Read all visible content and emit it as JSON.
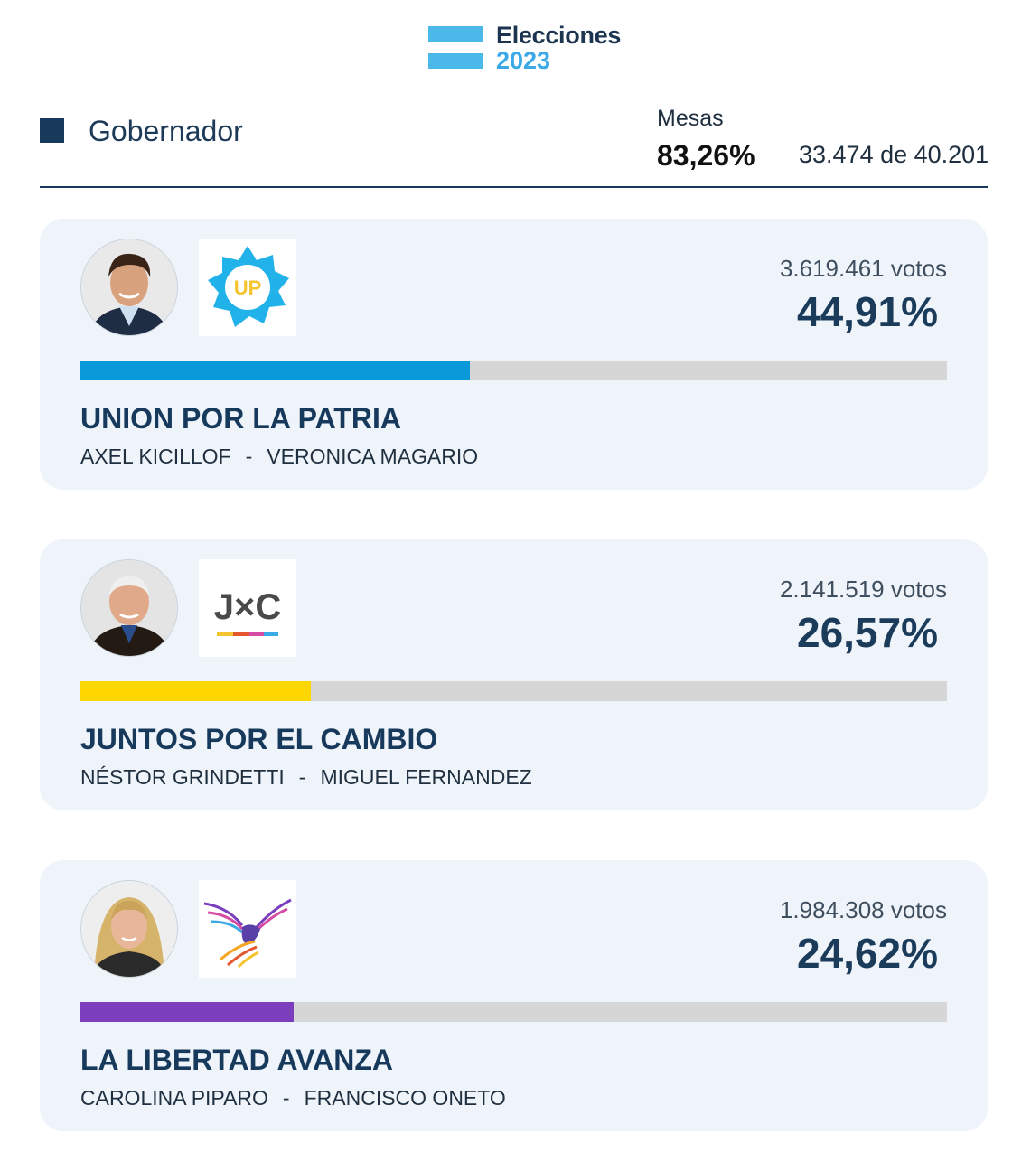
{
  "header": {
    "title": "Elecciones",
    "year": "2023",
    "flag_color": "#4bb8ea"
  },
  "section": {
    "title": "Gobernador",
    "mesas_label": "Mesas",
    "mesas_percent": "83,26%",
    "mesas_count": "33.474 de 40.201"
  },
  "results": [
    {
      "party": "UNION POR LA PATRIA",
      "candidate_1": "AXEL KICILLOF",
      "separator": "-",
      "candidate_2": "VERONICA MAGARIO",
      "votes": "3.619.461 votos",
      "percent": "44,91%",
      "share": 44.91,
      "bar_color": "#0a9ada",
      "logo_text": "UP",
      "logo_icon": "union-por-la-patria-sun-logo"
    },
    {
      "party": "JUNTOS POR EL CAMBIO",
      "candidate_1": "NÉSTOR GRINDETTI",
      "separator": "-",
      "candidate_2": "MIGUEL FERNANDEZ",
      "votes": "2.141.519 votos",
      "percent": "26,57%",
      "share": 26.57,
      "bar_color": "#ffd700",
      "logo_text": "J×C",
      "logo_icon": "juntos-por-el-cambio-logo"
    },
    {
      "party": "LA LIBERTAD AVANZA",
      "candidate_1": "CAROLINA PIPARO",
      "separator": "-",
      "candidate_2": "FRANCISCO ONETO",
      "votes": "1.984.308 votos",
      "percent": "24,62%",
      "share": 24.62,
      "bar_color": "#7b3fbe",
      "logo_text": "",
      "logo_icon": "la-libertad-avanza-eagle-logo"
    }
  ]
}
